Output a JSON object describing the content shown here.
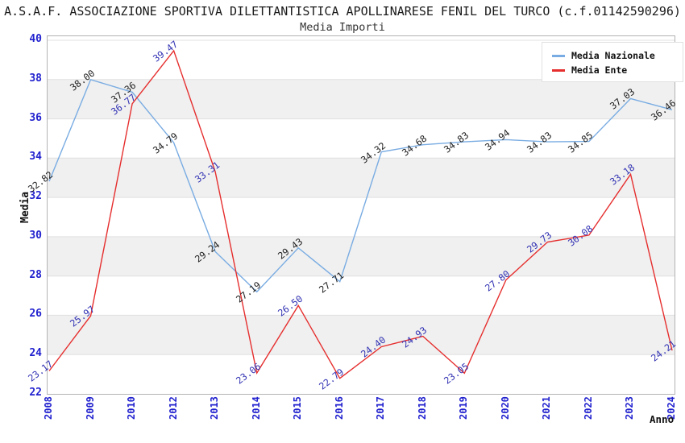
{
  "header": {
    "title": "A.S.A.F. ASSOCIAZIONE SPORTIVA DILETTANTISTICA APOLLINARESE FENIL DEL TURCO (c.f.01142590296)",
    "subtitle": "Media Importi"
  },
  "legend": {
    "items": [
      {
        "label": "Media Nazionale",
        "color": "#79ace2"
      },
      {
        "label": "Media Ente",
        "color": "#e62e2e"
      }
    ]
  },
  "axes": {
    "y_title": "Media",
    "x_title": "Anno",
    "y_ticks": [
      40,
      38,
      36,
      34,
      32,
      30,
      28,
      26,
      24,
      22
    ],
    "x_ticks": [
      "2008",
      "2009",
      "2010",
      "2012",
      "2013",
      "2014",
      "2015",
      "2016",
      "2017",
      "2018",
      "2019",
      "2020",
      "2021",
      "2022",
      "2023",
      "2024"
    ]
  },
  "colors": {
    "tick_label": "#2222cf",
    "band_gray": "#f0f0f0",
    "gridline": "#e0e0e0",
    "plot_border": "#b3b3b3",
    "background": "#ffffff"
  },
  "chart_data": {
    "type": "line",
    "title": "Media Importi",
    "xlabel": "Anno",
    "ylabel": "Media",
    "ylim": [
      22,
      40
    ],
    "y_tick_step": 2,
    "grid": true,
    "alternating_bands": true,
    "legend_position": "top-right",
    "categories": [
      "2008",
      "2009",
      "2010",
      "2012",
      "2013",
      "2014",
      "2015",
      "2016",
      "2017",
      "2018",
      "2019",
      "2020",
      "2021",
      "2022",
      "2023",
      "2024"
    ],
    "series": [
      {
        "name": "Media Nazionale",
        "color": "#79ace2",
        "label_color": "#222222",
        "values": [
          32.82,
          38.0,
          37.36,
          34.79,
          29.24,
          27.19,
          29.43,
          27.71,
          34.32,
          34.68,
          34.83,
          34.94,
          34.83,
          34.85,
          37.03,
          36.46
        ]
      },
      {
        "name": "Media Ente",
        "color": "#e62e2e",
        "label_color": "#3232b4",
        "values": [
          23.17,
          25.97,
          36.77,
          39.47,
          33.31,
          23.06,
          26.5,
          22.79,
          24.4,
          24.93,
          23.05,
          27.8,
          29.73,
          30.08,
          33.18,
          24.21
        ]
      }
    ]
  }
}
